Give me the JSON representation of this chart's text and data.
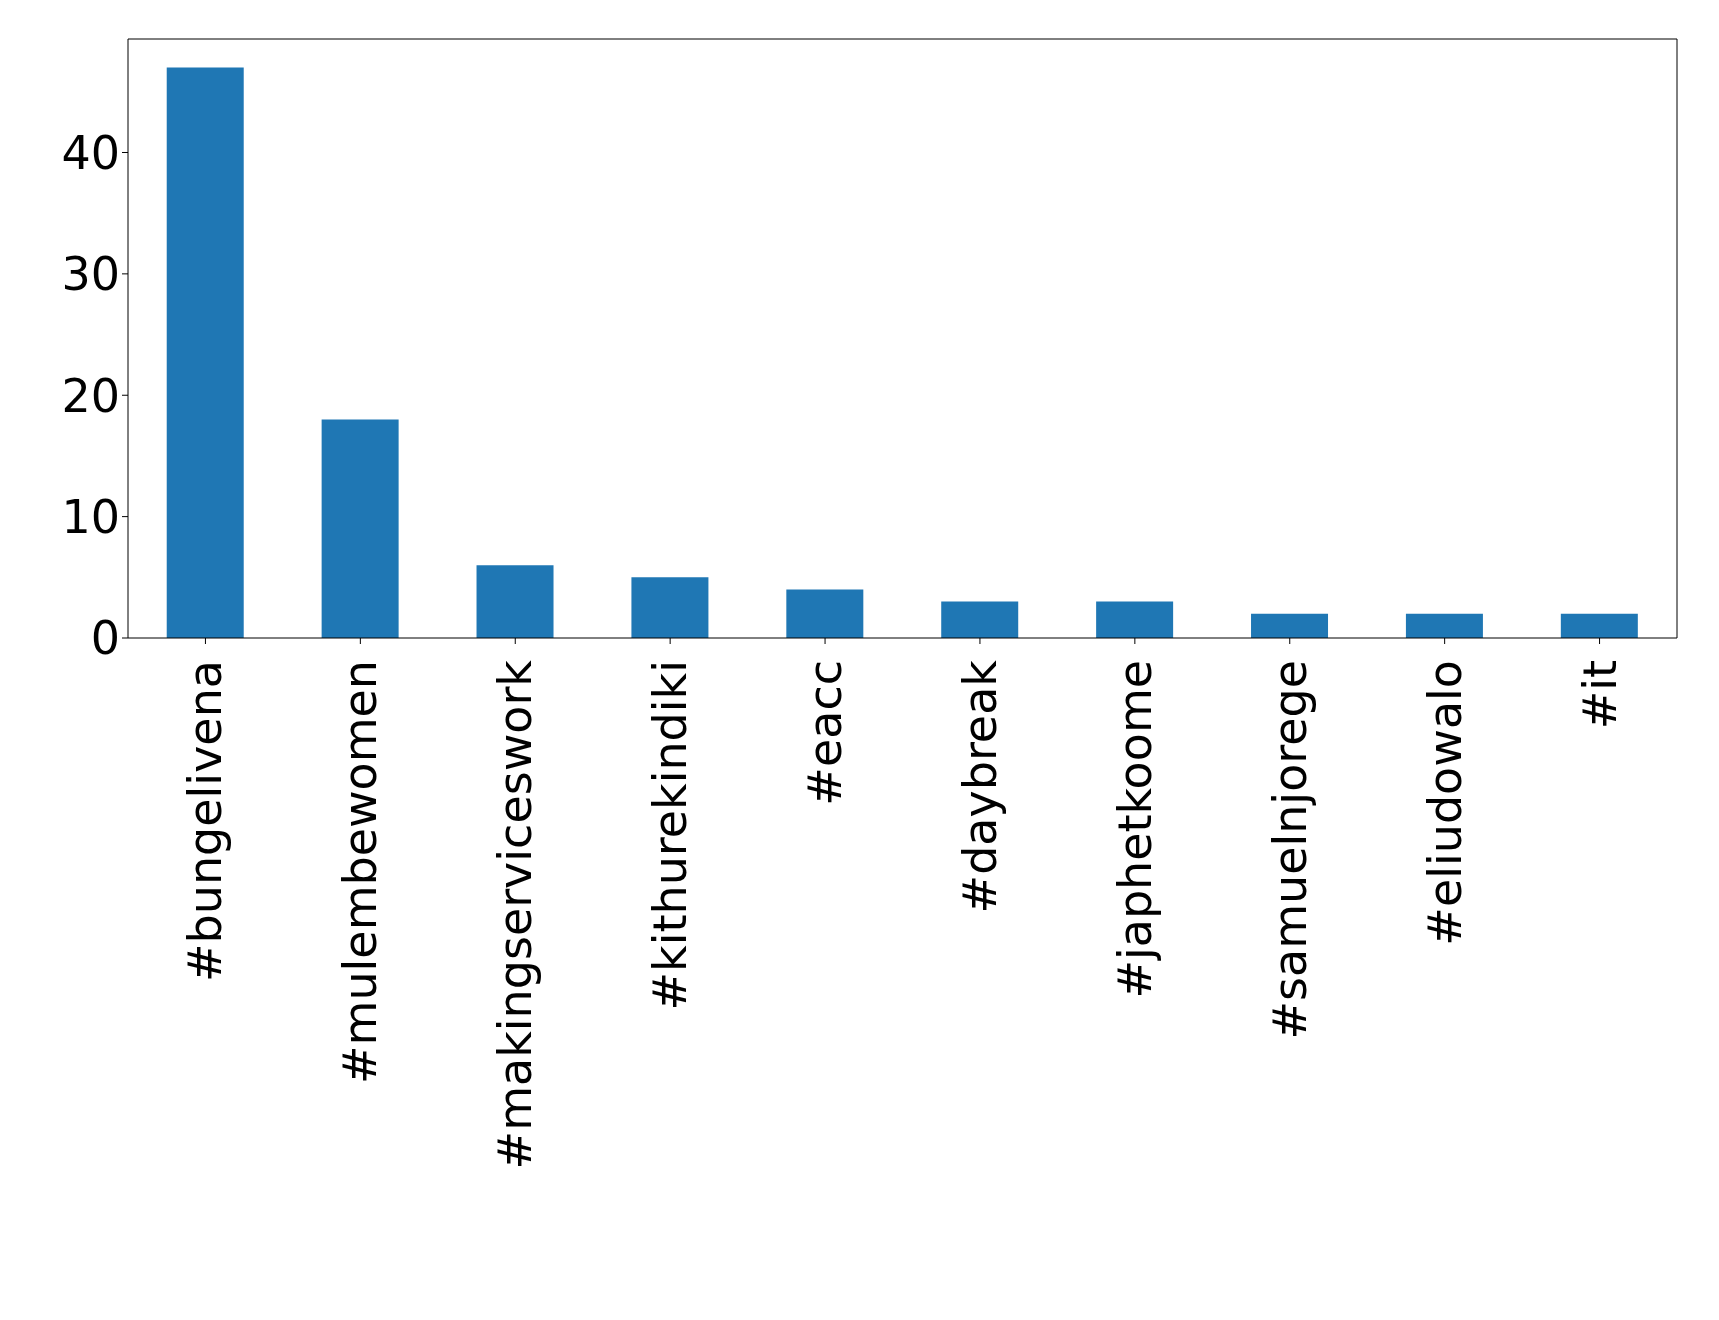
{
  "chart_data": {
    "type": "bar",
    "categories": [
      "#bungelivena",
      "#mulembewomen",
      "#makingserviceswork",
      "#kithurekindiki",
      "#eacc",
      "#daybreak",
      "#japhetkoome",
      "#samuelnjorege",
      "#eliudowalo",
      "#it"
    ],
    "values": [
      47,
      18,
      6,
      5,
      4,
      3,
      3,
      2,
      2,
      2
    ],
    "color": "#1f77b4",
    "ylim": [
      0,
      49.35
    ],
    "yticks": [
      0,
      10,
      20,
      30,
      40
    ],
    "grid": false,
    "legend": false
  }
}
